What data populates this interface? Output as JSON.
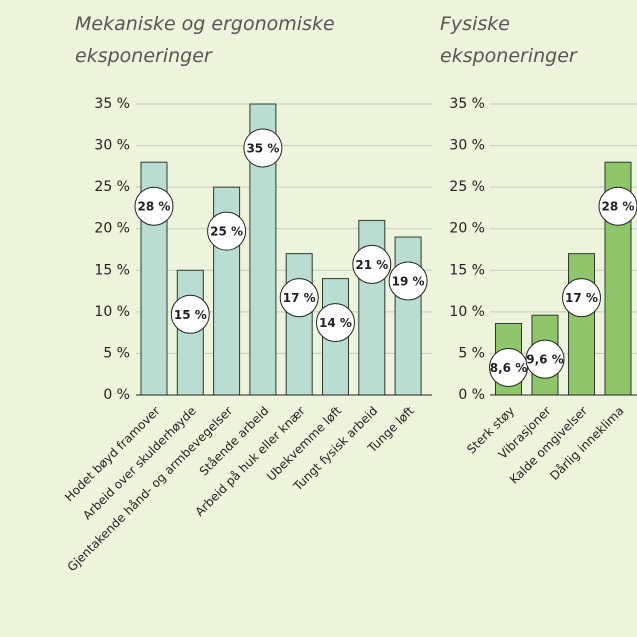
{
  "chart_data": [
    {
      "type": "bar",
      "title": "Mekaniske og ergonomiske eksponeringer",
      "categories": [
        "Hodet bøyd framover",
        "Arbeid over skulderhøyde",
        "Gjentakende hånd- og armbevegelser",
        "Stående arbeid",
        "Arbeid på huk eller knær",
        "Ubekvemme løft",
        "Tungt fysisk arbeid",
        "Tunge løft"
      ],
      "values": [
        28,
        15,
        25,
        35,
        17,
        14,
        21,
        19
      ],
      "value_labels": [
        "28 %",
        "15 %",
        "25 %",
        "35 %",
        "17 %",
        "14 %",
        "21 %",
        "19 %"
      ],
      "color": "#b9ddd0",
      "ylim": [
        0,
        35
      ],
      "yticks": [
        {
          "value": 0,
          "label": "0 %"
        },
        {
          "value": 5,
          "label": "5 %"
        },
        {
          "value": 10,
          "label": "10 %"
        },
        {
          "value": 15,
          "label": "15 %"
        },
        {
          "value": 20,
          "label": "20 %"
        },
        {
          "value": 25,
          "label": "25 %"
        },
        {
          "value": 30,
          "label": "30 %"
        },
        {
          "value": 35,
          "label": "35 %"
        }
      ],
      "grid": true
    },
    {
      "type": "bar",
      "title": "Fysiske eksponeringer",
      "categories": [
        "Sterk støy",
        "Vibrasjoner",
        "Kalde omgivelser",
        "Dårlig inneklima"
      ],
      "values": [
        8.6,
        9.6,
        17,
        28
      ],
      "value_labels": [
        "8,6 %",
        "9,6 %",
        "17 %",
        "28 %"
      ],
      "color": "#8fc66c",
      "ylim": [
        0,
        35
      ],
      "yticks": [
        {
          "value": 0,
          "label": "0 %"
        },
        {
          "value": 5,
          "label": "5 %"
        },
        {
          "value": 10,
          "label": "10 %"
        },
        {
          "value": 15,
          "label": "15 %"
        },
        {
          "value": 20,
          "label": "20 %"
        },
        {
          "value": 25,
          "label": "25 %"
        },
        {
          "value": 30,
          "label": "30 %"
        },
        {
          "value": 35,
          "label": "35 %"
        }
      ],
      "grid": true
    }
  ]
}
